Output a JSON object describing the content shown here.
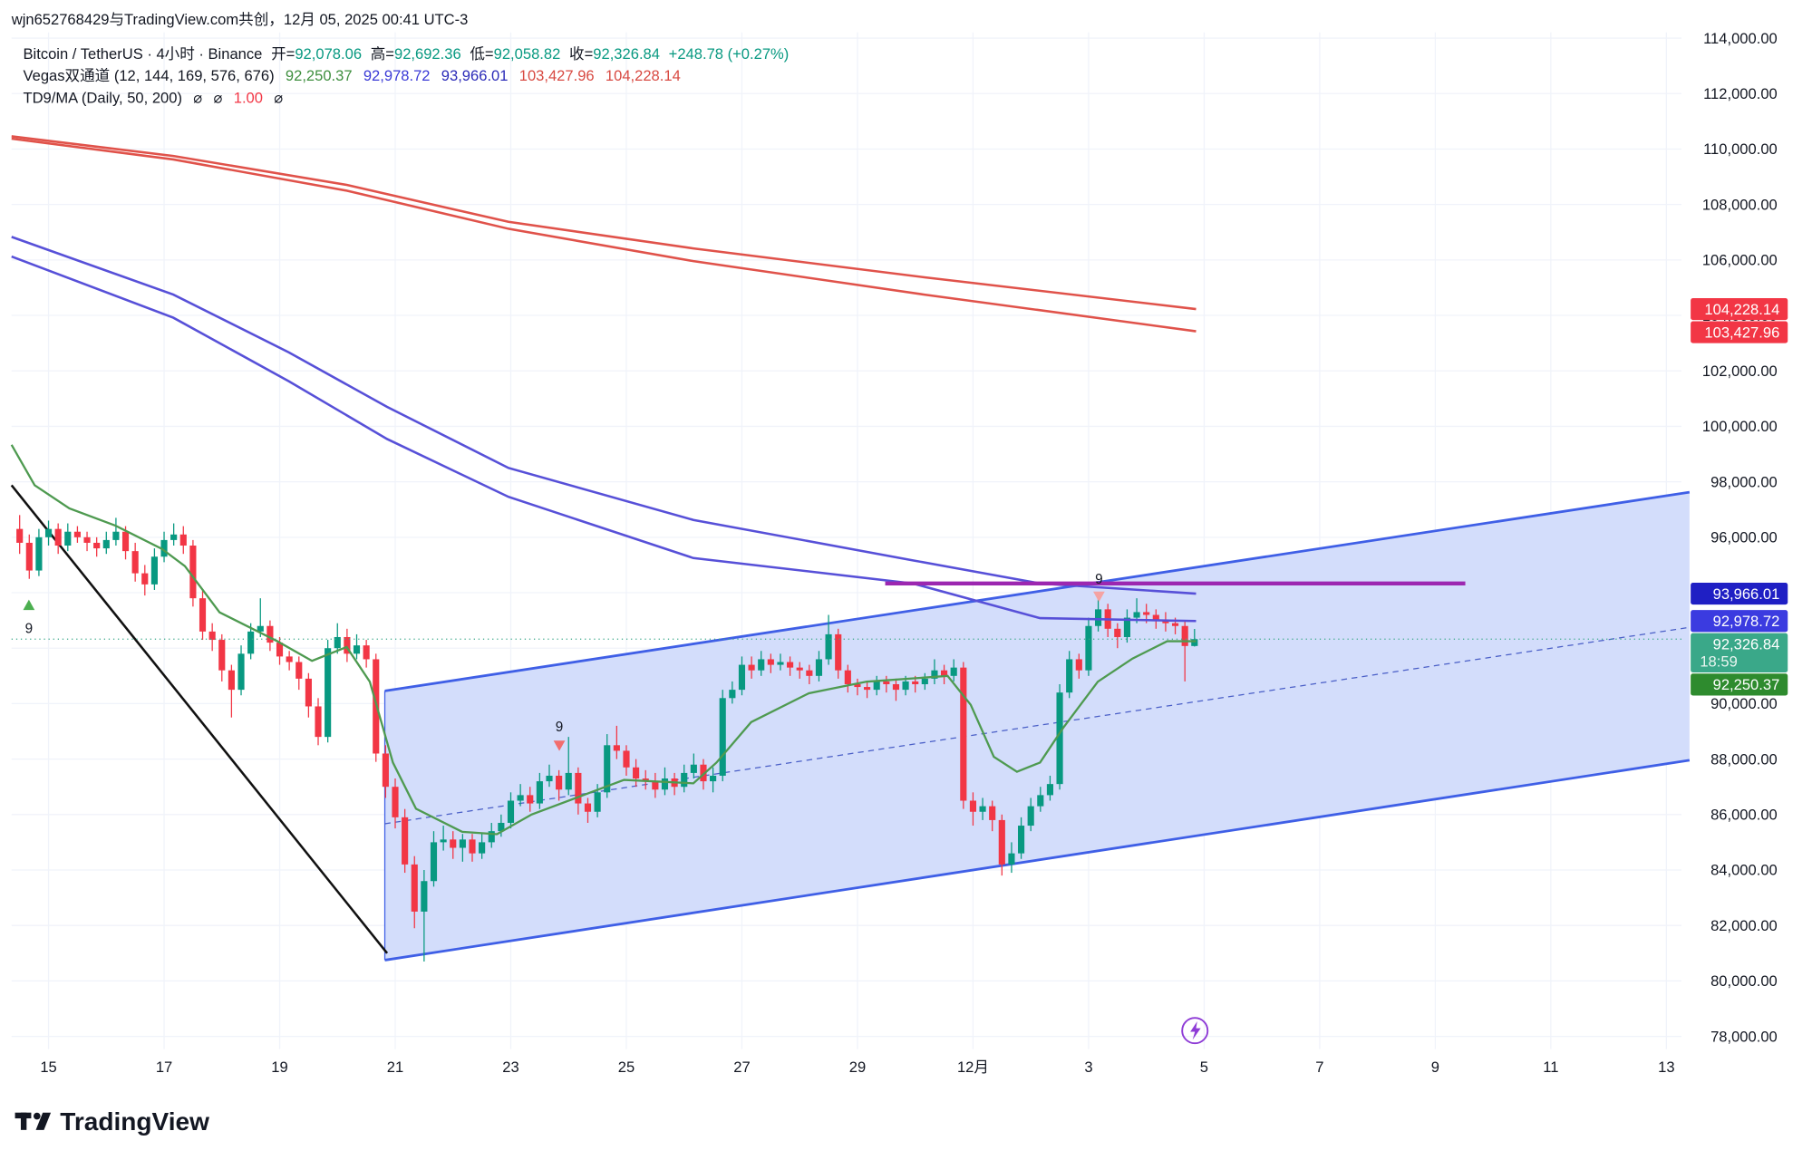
{
  "header": {
    "watermark": "wjn652768429与TradingView.com共创，12月 05, 2025 00:41 UTC-3"
  },
  "legend": {
    "symbol": "Bitcoin / TetherUS · 4小时 · Binance",
    "ohlc_items": [
      {
        "key": "开=",
        "value": "92,078.06"
      },
      {
        "key": "高=",
        "value": "92,692.36"
      },
      {
        "key": "低=",
        "value": "92,058.82"
      },
      {
        "key": "收=",
        "value": "92,326.84"
      }
    ],
    "change": "+248.78 (+0.27%)",
    "vegas_name": "Vegas双通道 (12, 144, 169, 576, 676)",
    "vegas_values": [
      "92,250.37",
      "92,978.72",
      "93,966.01",
      "103,427.96",
      "104,228.14"
    ],
    "td9_name": "TD9/MA (Daily, 50, 200)",
    "td9_values": [
      "⌀",
      "⌀",
      "1.00",
      "⌀"
    ]
  },
  "chart_data": {
    "type": "candlestick",
    "up_color": "#089981",
    "down_color": "#f23645",
    "grid": true,
    "xlim": [
      14.36,
      43.26
    ],
    "xticks": [
      15,
      17,
      19,
      21,
      23,
      25,
      27,
      29,
      {
        "value": 31,
        "label": "12月"
      },
      {
        "value": 33,
        "label": "3"
      },
      {
        "value": 35,
        "label": "5"
      },
      {
        "value": 37,
        "label": "7"
      },
      {
        "value": 39,
        "label": "9"
      },
      {
        "value": 41,
        "label": "11"
      },
      {
        "value": 43,
        "label": "13"
      }
    ],
    "ylim": [
      77542,
      114208
    ],
    "yticks": [
      {
        "value": 78000,
        "label": "78,000.00"
      },
      {
        "value": 80000,
        "label": "80,000.00"
      },
      {
        "value": 82000,
        "label": "82,000.00"
      },
      {
        "value": 84000,
        "label": "84,000.00"
      },
      {
        "value": 86000,
        "label": "86,000.00"
      },
      {
        "value": 88000,
        "label": "88,000.00"
      },
      {
        "value": 90000,
        "label": "90,000.00"
      },
      {
        "value": 92000,
        "label": "92,000.00"
      },
      {
        "value": 94000,
        "label": "94,000.00"
      },
      {
        "value": 96000,
        "label": "96,000.00"
      },
      {
        "value": 98000,
        "label": "98,000.00"
      },
      {
        "value": 100000,
        "label": "100,000.00"
      },
      {
        "value": 102000,
        "label": "102,000.00"
      },
      {
        "value": 104000,
        "label": "104,000.00"
      },
      {
        "value": 106000,
        "label": "106,000.00"
      },
      {
        "value": 108000,
        "label": "108,000.00"
      },
      {
        "value": 110000,
        "label": "110,000.00"
      },
      {
        "value": 112000,
        "label": "112,000.00"
      },
      {
        "value": 114000,
        "label": "114,000.00"
      }
    ],
    "x_start": 14.5,
    "x_step": 0.1666667,
    "ohlc": [
      [
        96300,
        96800,
        95400,
        95800
      ],
      [
        95800,
        96100,
        94500,
        94800
      ],
      [
        94800,
        96300,
        94600,
        96000
      ],
      [
        96000,
        96600,
        95700,
        96300
      ],
      [
        96300,
        96500,
        95400,
        95700
      ],
      [
        95700,
        96500,
        95500,
        96200
      ],
      [
        96200,
        96400,
        95800,
        96000
      ],
      [
        96000,
        96200,
        95500,
        95800
      ],
      [
        95800,
        96000,
        95300,
        95600
      ],
      [
        95600,
        96200,
        95400,
        95900
      ],
      [
        95900,
        96700,
        95700,
        96200
      ],
      [
        96200,
        96400,
        95200,
        95500
      ],
      [
        95500,
        95800,
        94400,
        94700
      ],
      [
        94700,
        95000,
        93900,
        94300
      ],
      [
        94300,
        95600,
        94100,
        95300
      ],
      [
        95300,
        96200,
        95100,
        95900
      ],
      [
        95900,
        96500,
        95700,
        96100
      ],
      [
        96100,
        96400,
        95400,
        95700
      ],
      [
        95700,
        95900,
        93500,
        93800
      ],
      [
        93800,
        94100,
        92300,
        92600
      ],
      [
        92600,
        92900,
        91900,
        92300
      ],
      [
        92300,
        92500,
        90800,
        91200
      ],
      [
        91200,
        91400,
        89500,
        90500
      ],
      [
        90500,
        92100,
        90300,
        91800
      ],
      [
        91800,
        92900,
        91600,
        92600
      ],
      [
        92600,
        93800,
        92400,
        92800
      ],
      [
        92800,
        93000,
        91900,
        92200
      ],
      [
        92200,
        92400,
        91400,
        91700
      ],
      [
        91700,
        91900,
        91200,
        91500
      ],
      [
        91500,
        91700,
        90500,
        90900
      ],
      [
        90900,
        91100,
        89500,
        89900
      ],
      [
        89900,
        90200,
        88500,
        88800
      ],
      [
        88800,
        92300,
        88600,
        92000
      ],
      [
        92000,
        92900,
        91800,
        92400
      ],
      [
        92400,
        92700,
        91500,
        91800
      ],
      [
        91800,
        92500,
        91600,
        92100
      ],
      [
        92100,
        92300,
        91300,
        91600
      ],
      [
        91600,
        91800,
        87900,
        88200
      ],
      [
        88200,
        88500,
        86600,
        87000
      ],
      [
        87000,
        87300,
        85500,
        85900
      ],
      [
        85900,
        86200,
        83900,
        84200
      ],
      [
        84200,
        84500,
        81900,
        82500
      ],
      [
        82500,
        84000,
        80700,
        83600
      ],
      [
        83600,
        85400,
        83400,
        85000
      ],
      [
        85000,
        85600,
        84700,
        85100
      ],
      [
        85100,
        85400,
        84400,
        84800
      ],
      [
        84800,
        85300,
        84300,
        85100
      ],
      [
        85100,
        85300,
        84300,
        84600
      ],
      [
        84600,
        85300,
        84400,
        85000
      ],
      [
        85000,
        85700,
        84800,
        85400
      ],
      [
        85400,
        86000,
        85200,
        85700
      ],
      [
        85700,
        86800,
        85500,
        86500
      ],
      [
        86500,
        87100,
        86300,
        86700
      ],
      [
        86700,
        87000,
        86100,
        86400
      ],
      [
        86400,
        87500,
        86200,
        87200
      ],
      [
        87200,
        87800,
        87000,
        87400
      ],
      [
        87400,
        87600,
        86500,
        86900
      ],
      [
        86900,
        88800,
        86700,
        87500
      ],
      [
        87500,
        87700,
        86000,
        86400
      ],
      [
        86400,
        86600,
        85700,
        86100
      ],
      [
        86100,
        87100,
        85900,
        86800
      ],
      [
        86800,
        88900,
        86600,
        88500
      ],
      [
        88500,
        89200,
        88000,
        88300
      ],
      [
        88300,
        88500,
        87400,
        87700
      ],
      [
        87700,
        88000,
        87000,
        87300
      ],
      [
        87300,
        87600,
        86900,
        87200
      ],
      [
        87200,
        87500,
        86600,
        86900
      ],
      [
        86900,
        87700,
        86700,
        87300
      ],
      [
        87300,
        87500,
        86700,
        87000
      ],
      [
        87000,
        87800,
        86800,
        87500
      ],
      [
        87500,
        88200,
        87300,
        87800
      ],
      [
        87800,
        88000,
        86900,
        87200
      ],
      [
        87200,
        87700,
        86800,
        87400
      ],
      [
        87400,
        90500,
        87200,
        90200
      ],
      [
        90200,
        90800,
        90000,
        90500
      ],
      [
        90500,
        91700,
        90300,
        91400
      ],
      [
        91400,
        91700,
        90900,
        91200
      ],
      [
        91200,
        91900,
        91000,
        91600
      ],
      [
        91600,
        91800,
        91100,
        91400
      ],
      [
        91400,
        91800,
        91200,
        91500
      ],
      [
        91500,
        91700,
        91000,
        91300
      ],
      [
        91300,
        91500,
        90900,
        91200
      ],
      [
        91200,
        91400,
        90700,
        91000
      ],
      [
        91000,
        91900,
        90800,
        91600
      ],
      [
        91600,
        93200,
        91400,
        92500
      ],
      [
        92500,
        92700,
        90900,
        91200
      ],
      [
        91200,
        91400,
        90400,
        90700
      ],
      [
        90700,
        90900,
        90300,
        90600
      ],
      [
        90600,
        90800,
        90200,
        90500
      ],
      [
        90500,
        91000,
        90300,
        90800
      ],
      [
        90800,
        91000,
        90400,
        90700
      ],
      [
        90700,
        90900,
        90100,
        90500
      ],
      [
        90500,
        91000,
        90300,
        90800
      ],
      [
        90800,
        91000,
        90400,
        90700
      ],
      [
        90700,
        91100,
        90500,
        90900
      ],
      [
        90900,
        91600,
        90700,
        91200
      ],
      [
        91200,
        91400,
        90700,
        91000
      ],
      [
        91000,
        91600,
        90800,
        91300
      ],
      [
        91300,
        91500,
        86200,
        86500
      ],
      [
        86500,
        86800,
        85600,
        86100
      ],
      [
        86100,
        86600,
        85800,
        86300
      ],
      [
        86300,
        86500,
        85400,
        85800
      ],
      [
        85800,
        86000,
        83800,
        84200
      ],
      [
        84200,
        85000,
        83900,
        84600
      ],
      [
        84600,
        85900,
        84400,
        85600
      ],
      [
        85600,
        86600,
        85400,
        86300
      ],
      [
        86300,
        87000,
        86100,
        86700
      ],
      [
        86700,
        87400,
        86500,
        87100
      ],
      [
        87100,
        90700,
        86900,
        90400
      ],
      [
        90400,
        91900,
        90200,
        91600
      ],
      [
        91600,
        91800,
        90900,
        91200
      ],
      [
        91200,
        93100,
        91000,
        92800
      ],
      [
        92800,
        93900,
        92600,
        93400
      ],
      [
        93400,
        93600,
        92400,
        92700
      ],
      [
        92700,
        92900,
        92000,
        92400
      ],
      [
        92400,
        93400,
        92200,
        93100
      ],
      [
        93100,
        93800,
        92900,
        93300
      ],
      [
        93300,
        93600,
        92900,
        93200
      ],
      [
        93200,
        93400,
        92700,
        93000
      ],
      [
        93000,
        93300,
        92600,
        92900
      ],
      [
        92900,
        93100,
        92500,
        92800
      ],
      [
        92800,
        93000,
        90800,
        92078.06
      ],
      [
        92078.06,
        92692.36,
        92058.82,
        92326.84
      ]
    ],
    "lines": [
      {
        "color": "#e0524a",
        "x": [
          14.36,
          17.16,
          20.16,
          22.96,
          26.16,
          30.16,
          34.86
        ],
        "values": [
          110458,
          109750,
          108708,
          107375,
          106417,
          105375,
          104228.14
        ]
      },
      {
        "color": "#e0524a",
        "x": [
          14.36,
          17.16,
          20.16,
          22.96,
          26.16,
          30.16,
          34.86
        ],
        "values": [
          110375,
          109625,
          108500,
          107125,
          105958,
          104750,
          103427.96
        ]
      },
      {
        "color": "#5750d8",
        "x": [
          14.36,
          17.16,
          19.16,
          20.86,
          22.96,
          26.16,
          29.96,
          32.16,
          34.86
        ],
        "values": [
          106833,
          104750,
          102667,
          100700,
          98500,
          96625,
          95167,
          94333,
          93966.01
        ]
      },
      {
        "color": "#5750d8",
        "x": [
          14.36,
          17.16,
          19.16,
          20.86,
          22.96,
          26.16,
          29.96,
          32.16,
          34.86
        ],
        "values": [
          106125,
          103917,
          101625,
          99542,
          97458,
          95250,
          94333,
          93083,
          92978.72
        ]
      },
      {
        "color": "#4e9a50",
        "x": [
          14.36,
          14.76,
          15.36,
          16.16,
          16.96,
          17.36,
          17.96,
          18.36,
          18.96,
          19.56,
          20.16,
          20.56,
          20.96,
          21.36,
          22.16,
          22.76,
          23.36,
          24.16,
          24.96,
          26.16,
          26.56,
          27.16,
          28.16,
          29.16,
          30.56,
          30.96,
          31.36,
          31.76,
          32.16,
          32.56,
          33.16,
          33.76,
          34.36,
          34.86
        ],
        "values": [
          99333,
          97875,
          97042,
          96417,
          95583,
          94958,
          93292,
          92875,
          92250,
          91542,
          92042,
          90792,
          87875,
          86208,
          85375,
          85292,
          86000,
          86625,
          87250,
          87125,
          87875,
          89333,
          90375,
          90792,
          91000,
          89958,
          88083,
          87542,
          87875,
          89125,
          90792,
          91625,
          92250,
          92250.37
        ]
      }
    ],
    "price_tags": [
      {
        "label": "104,228.14",
        "value": 104228.14,
        "color": "#f23645"
      },
      {
        "label": "103,427.96",
        "value": 103427.96,
        "color": "#f23645"
      },
      {
        "label": "93,966.01",
        "value": 93966.01,
        "color": "#1f1fc4"
      },
      {
        "label": "92,978.72",
        "value": 92978.72,
        "color": "#3b3be0"
      },
      {
        "label": "92,326.84",
        "value": 92326.84,
        "color": "#3aa889",
        "countdown": "18:59"
      },
      {
        "label": "92,250.37",
        "value": 92250.37,
        "color": "#2e8b2e"
      }
    ],
    "td9_marks": [
      {
        "label": "9",
        "color": "#4caf50"
      },
      {
        "label": "9",
        "color": "#f26d6d"
      },
      {
        "label": "9",
        "color": "#f5a3a3"
      }
    ]
  },
  "footer": {
    "brand": "TradingView"
  }
}
